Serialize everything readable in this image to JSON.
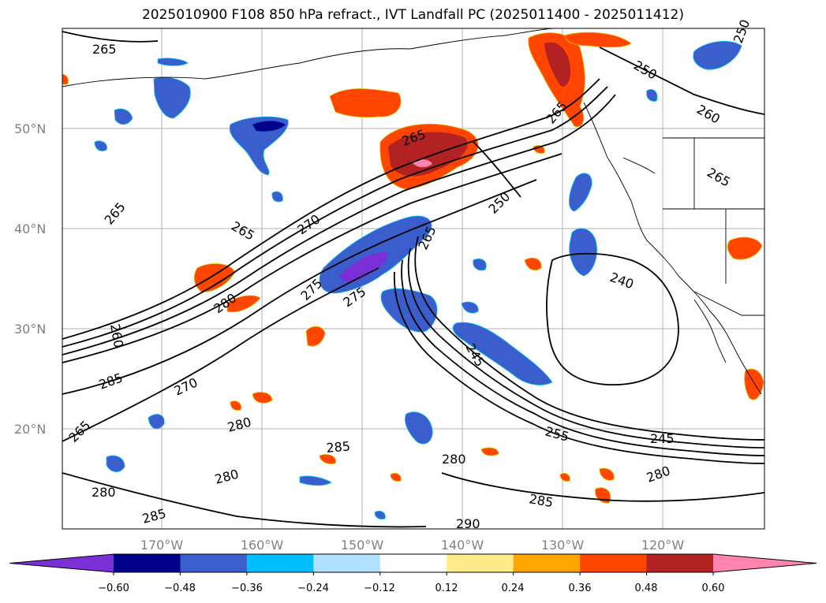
{
  "title": "2025010900 F108 850 hPa refract., IVT Landfall PC (2025011400 - 2025011412)",
  "lat_labels": [
    "50°N",
    "40°N",
    "30°N",
    "20°N"
  ],
  "lon_labels": [
    "170°W",
    "160°W",
    "150°W",
    "140°W",
    "130°W",
    "120°W"
  ],
  "colorbar": {
    "colors": [
      "#7b2fd6",
      "#00008b",
      "#3a5fcd",
      "#00bfff",
      "#b0e2ff",
      "#ffffff",
      "#ffeb8a",
      "#ffa500",
      "#ff4500",
      "#b22222",
      "#ff85b0"
    ],
    "tick_labels": [
      "−0.60",
      "−0.48",
      "−0.36",
      "−0.24",
      "−0.12",
      "0.12",
      "0.24",
      "0.36",
      "0.48",
      "0.60"
    ]
  },
  "contour_labels": [
    "265",
    "265",
    "265",
    "265",
    "270",
    "275",
    "275",
    "280",
    "260",
    "285",
    "270",
    "280",
    "265",
    "280",
    "285",
    "280",
    "285",
    "280",
    "265",
    "265",
    "250",
    "250",
    "260",
    "265",
    "240",
    "245",
    "255",
    "245",
    "280",
    "285",
    "290",
    "250",
    "270"
  ]
}
